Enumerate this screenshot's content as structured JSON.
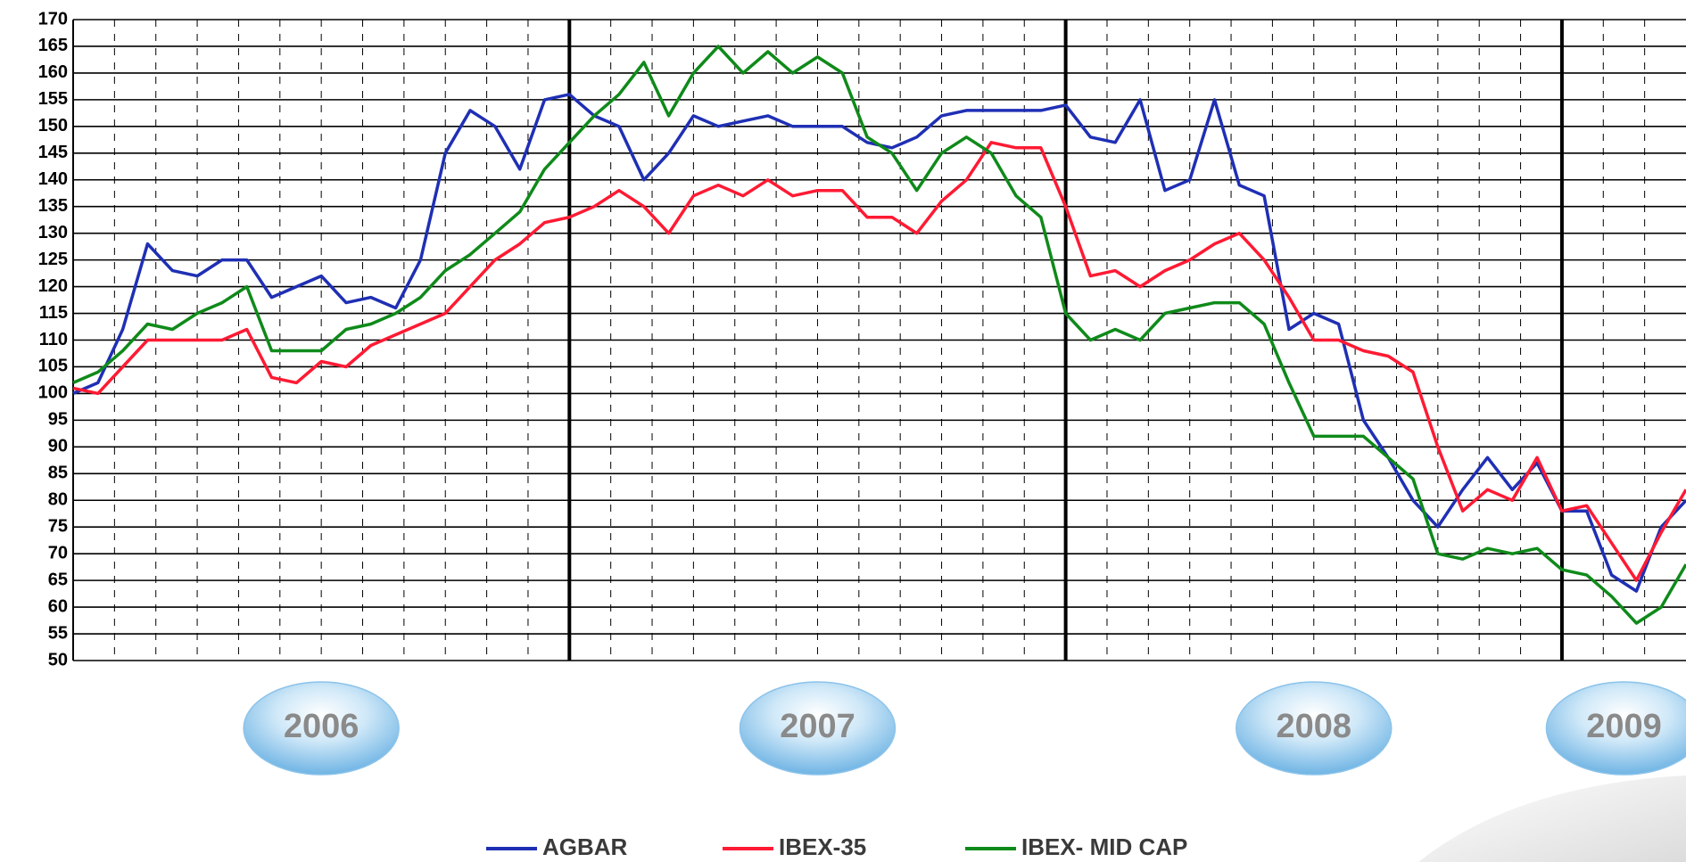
{
  "chart_data": {
    "type": "line",
    "x": [
      2006.0,
      2006.05,
      2006.1,
      2006.15,
      2006.2,
      2006.25,
      2006.3,
      2006.35,
      2006.4,
      2006.45,
      2006.5,
      2006.55,
      2006.6,
      2006.65,
      2006.7,
      2006.75,
      2006.8,
      2006.85,
      2006.9,
      2006.95,
      2007.0,
      2007.05,
      2007.1,
      2007.15,
      2007.2,
      2007.25,
      2007.3,
      2007.35,
      2007.4,
      2007.45,
      2007.5,
      2007.55,
      2007.6,
      2007.65,
      2007.7,
      2007.75,
      2007.8,
      2007.85,
      2007.9,
      2007.95,
      2008.0,
      2008.05,
      2008.1,
      2008.15,
      2008.2,
      2008.25,
      2008.3,
      2008.35,
      2008.4,
      2008.45,
      2008.5,
      2008.55,
      2008.6,
      2008.65,
      2008.7,
      2008.75,
      2008.8,
      2008.85,
      2008.9,
      2008.95,
      2009.0,
      2009.05,
      2009.1,
      2009.15,
      2009.2,
      2009.25
    ],
    "series": [
      {
        "name": "AGBAR",
        "color": "#1f2fb4",
        "values": [
          100,
          102,
          112,
          128,
          123,
          122,
          125,
          125,
          118,
          120,
          122,
          117,
          118,
          116,
          125,
          145,
          153,
          150,
          142,
          155,
          156,
          152,
          150,
          140,
          145,
          152,
          150,
          151,
          152,
          150,
          150,
          150,
          147,
          146,
          148,
          152,
          153,
          153,
          153,
          153,
          154,
          148,
          147,
          155,
          138,
          140,
          155,
          139,
          137,
          112,
          115,
          113,
          95,
          88,
          80,
          75,
          82,
          88,
          82,
          87,
          78,
          78,
          66,
          63,
          75,
          80
        ]
      },
      {
        "name": "IBEX-35",
        "color": "#ff1a33",
        "values": [
          101,
          100,
          105,
          110,
          110,
          110,
          110,
          112,
          103,
          102,
          106,
          105,
          109,
          111,
          113,
          115,
          120,
          125,
          128,
          132,
          133,
          135,
          138,
          135,
          130,
          137,
          139,
          137,
          140,
          137,
          138,
          138,
          133,
          133,
          130,
          136,
          140,
          147,
          146,
          146,
          135,
          122,
          123,
          120,
          123,
          125,
          128,
          130,
          125,
          118,
          110,
          110,
          108,
          107,
          104,
          90,
          78,
          82,
          80,
          88,
          78,
          79,
          72,
          65,
          74,
          82
        ]
      },
      {
        "name": "IBEX- MID CAP",
        "color": "#0f8a1a",
        "values": [
          102,
          104,
          108,
          113,
          112,
          115,
          117,
          120,
          108,
          108,
          108,
          112,
          113,
          115,
          118,
          123,
          126,
          130,
          134,
          142,
          147,
          152,
          156,
          162,
          152,
          160,
          165,
          160,
          164,
          160,
          163,
          160,
          148,
          145,
          138,
          145,
          148,
          145,
          137,
          133,
          115,
          110,
          112,
          110,
          115,
          116,
          117,
          117,
          113,
          102,
          92,
          92,
          92,
          88,
          84,
          70,
          69,
          71,
          70,
          71,
          67,
          66,
          62,
          57,
          60,
          68
        ]
      }
    ],
    "xlim": [
      2006,
      2009.25
    ],
    "xticks": [
      2006,
      2007,
      2008,
      2009
    ],
    "ylim": [
      50,
      170
    ],
    "yticks": [
      50,
      55,
      60,
      65,
      70,
      75,
      80,
      85,
      90,
      95,
      100,
      105,
      110,
      115,
      120,
      125,
      130,
      135,
      140,
      145,
      150,
      155,
      160,
      165,
      170
    ],
    "grid": true
  }
}
